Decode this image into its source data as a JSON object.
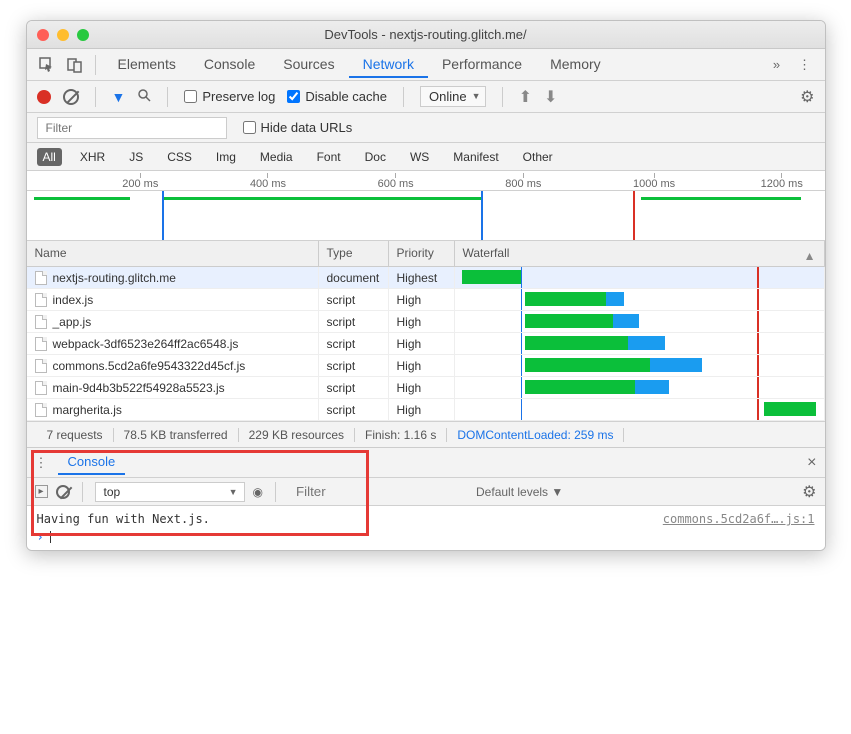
{
  "window": {
    "title": "DevTools - nextjs-routing.glitch.me/"
  },
  "tabs": [
    "Elements",
    "Console",
    "Sources",
    "Network",
    "Performance",
    "Memory"
  ],
  "active_tab_index": 3,
  "toolbar": {
    "preserve_log_label": "Preserve log",
    "preserve_log_checked": false,
    "disable_cache_label": "Disable cache",
    "disable_cache_checked": true,
    "throttle": "Online"
  },
  "filter": {
    "placeholder": "Filter",
    "hide_data_urls_label": "Hide data URLs",
    "hide_data_urls_checked": false
  },
  "type_filters": [
    "All",
    "XHR",
    "JS",
    "CSS",
    "Img",
    "Media",
    "Font",
    "Doc",
    "WS",
    "Manifest",
    "Other"
  ],
  "active_type_filter_index": 0,
  "timeline_ticks": [
    {
      "label": "200 ms",
      "pos_pct": 12
    },
    {
      "label": "400 ms",
      "pos_pct": 28
    },
    {
      "label": "600 ms",
      "pos_pct": 44
    },
    {
      "label": "800 ms",
      "pos_pct": 60
    },
    {
      "label": "1000 ms",
      "pos_pct": 76
    },
    {
      "label": "1200 ms",
      "pos_pct": 92
    }
  ],
  "overview_bars": [
    {
      "left_pct": 1,
      "width_pct": 12,
      "color": "#0bbf3a"
    },
    {
      "left_pct": 17,
      "width_pct": 40,
      "color": "#0bbf3a"
    },
    {
      "left_pct": 77,
      "width_pct": 20,
      "color": "#0bbf3a"
    }
  ],
  "overview_lines": [
    {
      "pos_pct": 17,
      "color": "#1a73e8"
    },
    {
      "pos_pct": 57,
      "color": "#1a73e8"
    },
    {
      "pos_pct": 76,
      "color": "#d93025"
    }
  ],
  "columns": {
    "name": "Name",
    "type": "Type",
    "priority": "Priority",
    "waterfall": "Waterfall"
  },
  "waterfall_lines": [
    {
      "pos_pct": 18,
      "color": "#1a73e8"
    },
    {
      "pos_pct": 82,
      "color": "#d93025"
    }
  ],
  "requests": [
    {
      "name": "nextjs-routing.glitch.me",
      "type": "document",
      "priority": "Highest",
      "selected": true,
      "bars": [
        {
          "left_pct": 2,
          "width_pct": 16,
          "color": "#0bbf3a"
        }
      ]
    },
    {
      "name": "index.js",
      "type": "script",
      "priority": "High",
      "bars": [
        {
          "left_pct": 19,
          "width_pct": 22,
          "color": "#0bbf3a"
        },
        {
          "left_pct": 41,
          "width_pct": 5,
          "color": "#1a9cf0"
        }
      ]
    },
    {
      "name": "_app.js",
      "type": "script",
      "priority": "High",
      "bars": [
        {
          "left_pct": 19,
          "width_pct": 24,
          "color": "#0bbf3a"
        },
        {
          "left_pct": 43,
          "width_pct": 7,
          "color": "#1a9cf0"
        }
      ]
    },
    {
      "name": "webpack-3df6523e264ff2ac6548.js",
      "type": "script",
      "priority": "High",
      "bars": [
        {
          "left_pct": 19,
          "width_pct": 28,
          "color": "#0bbf3a"
        },
        {
          "left_pct": 47,
          "width_pct": 10,
          "color": "#1a9cf0"
        }
      ]
    },
    {
      "name": "commons.5cd2a6fe9543322d45cf.js",
      "type": "script",
      "priority": "High",
      "bars": [
        {
          "left_pct": 19,
          "width_pct": 34,
          "color": "#0bbf3a"
        },
        {
          "left_pct": 53,
          "width_pct": 14,
          "color": "#1a9cf0"
        }
      ]
    },
    {
      "name": "main-9d4b3b522f54928a5523.js",
      "type": "script",
      "priority": "High",
      "bars": [
        {
          "left_pct": 19,
          "width_pct": 30,
          "color": "#0bbf3a"
        },
        {
          "left_pct": 49,
          "width_pct": 9,
          "color": "#1a9cf0"
        }
      ]
    },
    {
      "name": "margherita.js",
      "type": "script",
      "priority": "High",
      "bars": [
        {
          "left_pct": 84,
          "width_pct": 14,
          "color": "#0bbf3a"
        }
      ]
    }
  ],
  "status": [
    {
      "text": "7 requests"
    },
    {
      "text": "78.5 KB transferred"
    },
    {
      "text": "229 KB resources"
    },
    {
      "text": "Finish: 1.16 s"
    },
    {
      "text": "DOMContentLoaded: 259 ms",
      "link": true
    }
  ],
  "drawer": {
    "tab": "Console",
    "context": "top",
    "filter_placeholder": "Filter",
    "levels": "Default levels ▼",
    "log_message": "Having fun with Next.js.",
    "log_source": "commons.5cd2a6f….js:1"
  }
}
